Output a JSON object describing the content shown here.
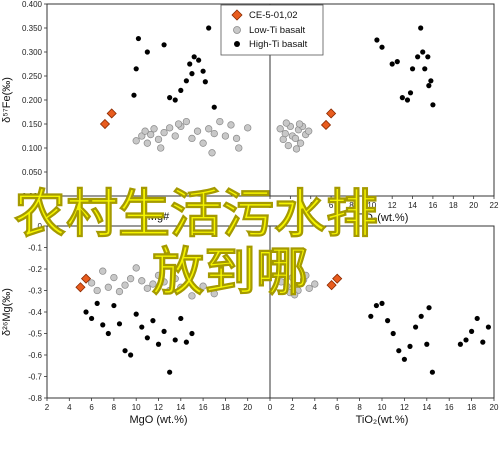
{
  "overlay_text": {
    "line1": "农村生活污水排",
    "line2": "放到哪"
  },
  "colors": {
    "ce": "#e85c1e",
    "ce_stroke": "#8b2a00",
    "low_ti": "#c8c8c8",
    "low_ti_stroke": "#8a8a8a",
    "high_ti": "#000000",
    "overlay": "#f5f500",
    "frame": "#333333"
  },
  "legend": {
    "ce": "CE-5-01,02",
    "low_ti": "Low-Ti basalt",
    "high_ti": "High-Ti basalt"
  },
  "chart_data": [
    {
      "type": "scatter",
      "panel": "top-left",
      "xlabel": "Mg#",
      "ylabel": "δ⁵⁷Fe(‰)",
      "xlim": [
        0,
        20
      ],
      "ylim": [
        0.0,
        0.4
      ],
      "xticks": [],
      "yticks": [
        "0.000",
        "0.050",
        "0.100",
        "0.150",
        "0.200",
        "0.250",
        "0.300",
        "0.350",
        "0.400"
      ],
      "series": [
        {
          "name": "CE-5-01,02",
          "marker": "diamond",
          "points": [
            [
              5.2,
              0.15
            ],
            [
              5.8,
              0.172
            ]
          ]
        },
        {
          "name": "Low-Ti basalt",
          "marker": "circle",
          "points": [
            [
              8,
              0.115
            ],
            [
              8.5,
              0.125
            ],
            [
              8.8,
              0.135
            ],
            [
              9,
              0.11
            ],
            [
              9.3,
              0.128
            ],
            [
              9.6,
              0.14
            ],
            [
              10,
              0.118
            ],
            [
              10.5,
              0.132
            ],
            [
              11,
              0.142
            ],
            [
              11.5,
              0.125
            ],
            [
              12,
              0.145
            ],
            [
              12.5,
              0.155
            ],
            [
              13,
              0.12
            ],
            [
              13.5,
              0.135
            ],
            [
              14,
              0.11
            ],
            [
              14.5,
              0.14
            ],
            [
              15,
              0.13
            ],
            [
              15.5,
              0.155
            ],
            [
              16,
              0.125
            ],
            [
              16.5,
              0.148
            ],
            [
              17,
              0.12
            ],
            [
              17.2,
              0.1
            ],
            [
              18,
              0.142
            ],
            [
              14.8,
              0.09
            ],
            [
              10.2,
              0.1
            ],
            [
              11.8,
              0.15
            ]
          ]
        },
        {
          "name": "High-Ti basalt",
          "marker": "circle",
          "points": [
            [
              7.8,
              0.21
            ],
            [
              8,
              0.265
            ],
            [
              8.2,
              0.328
            ],
            [
              9,
              0.3
            ],
            [
              10.5,
              0.315
            ],
            [
              11,
              0.205
            ],
            [
              11.5,
              0.2
            ],
            [
              12,
              0.22
            ],
            [
              12.5,
              0.24
            ],
            [
              12.8,
              0.275
            ],
            [
              13,
              0.255
            ],
            [
              13.2,
              0.29
            ],
            [
              13.6,
              0.283
            ],
            [
              14,
              0.26
            ],
            [
              14.2,
              0.238
            ],
            [
              14.5,
              0.35
            ],
            [
              15,
              0.185
            ]
          ]
        }
      ]
    },
    {
      "type": "scatter",
      "panel": "top-right",
      "xlabel": "TiO₂(wt.%)",
      "ylabel": "",
      "xlim": [
        0,
        22
      ],
      "ylim": [
        0.0,
        0.4
      ],
      "xticks": [
        "0",
        "2",
        "4",
        "6",
        "8",
        "10",
        "12",
        "14",
        "16",
        "18",
        "20",
        "22"
      ],
      "yticks": [],
      "series": [
        {
          "name": "CE-5-01,02",
          "points": [
            [
              5.5,
              0.148
            ],
            [
              6,
              0.172
            ]
          ]
        },
        {
          "name": "Low-Ti basalt",
          "points": [
            [
              1,
              0.14
            ],
            [
              1.3,
              0.118
            ],
            [
              1.5,
              0.13
            ],
            [
              1.8,
              0.105
            ],
            [
              2,
              0.145
            ],
            [
              2.2,
              0.125
            ],
            [
              2.5,
              0.12
            ],
            [
              2.8,
              0.138
            ],
            [
              3,
              0.11
            ],
            [
              3.2,
              0.145
            ],
            [
              3.5,
              0.128
            ],
            [
              2.6,
              0.098
            ],
            [
              3.8,
              0.135
            ],
            [
              1.6,
              0.152
            ],
            [
              2.9,
              0.15
            ]
          ]
        },
        {
          "name": "High-Ti basalt",
          "points": [
            [
              10.5,
              0.325
            ],
            [
              11,
              0.31
            ],
            [
              12,
              0.275
            ],
            [
              12.5,
              0.28
            ],
            [
              13,
              0.205
            ],
            [
              13.5,
              0.2
            ],
            [
              13.8,
              0.215
            ],
            [
              14,
              0.265
            ],
            [
              14.5,
              0.29
            ],
            [
              14.8,
              0.35
            ],
            [
              15,
              0.3
            ],
            [
              15.2,
              0.265
            ],
            [
              15.5,
              0.29
            ],
            [
              15.8,
              0.24
            ],
            [
              15.6,
              0.23
            ],
            [
              16,
              0.19
            ]
          ]
        }
      ]
    },
    {
      "type": "scatter",
      "panel": "bottom-left",
      "xlabel": "MgO (wt.%)",
      "ylabel": "δ²⁶Mg(‰)",
      "xlim": [
        2,
        22
      ],
      "ylim": [
        -0.8,
        0.0
      ],
      "xticks": [
        "2",
        "4",
        "6",
        "8",
        "10",
        "12",
        "14",
        "16",
        "18",
        "20"
      ],
      "yticks": [
        "0",
        "-0.1",
        "-0.2",
        "-0.3",
        "-0.4",
        "-0.5",
        "-0.6",
        "-0.7",
        "-0.8"
      ],
      "series": [
        {
          "name": "CE-5-01,02",
          "points": [
            [
              5,
              -0.285
            ],
            [
              5.5,
              -0.245
            ]
          ]
        },
        {
          "name": "Low-Ti basalt",
          "points": [
            [
              6,
              -0.265
            ],
            [
              6.5,
              -0.3
            ],
            [
              7,
              -0.21
            ],
            [
              7.5,
              -0.285
            ],
            [
              8,
              -0.24
            ],
            [
              8.5,
              -0.305
            ],
            [
              9,
              -0.275
            ],
            [
              9.5,
              -0.245
            ],
            [
              10,
              -0.195
            ],
            [
              10.5,
              -0.255
            ],
            [
              11,
              -0.29
            ],
            [
              11.5,
              -0.27
            ],
            [
              12,
              -0.23
            ],
            [
              12.5,
              -0.26
            ],
            [
              13,
              -0.3
            ],
            [
              13.5,
              -0.245
            ],
            [
              14,
              -0.285
            ],
            [
              15,
              -0.325
            ],
            [
              16,
              -0.28
            ],
            [
              17,
              -0.315
            ]
          ]
        },
        {
          "name": "High-Ti basalt",
          "points": [
            [
              5.5,
              -0.4
            ],
            [
              6,
              -0.43
            ],
            [
              6.5,
              -0.36
            ],
            [
              7,
              -0.46
            ],
            [
              7.5,
              -0.5
            ],
            [
              8,
              -0.37
            ],
            [
              8.5,
              -0.455
            ],
            [
              9,
              -0.58
            ],
            [
              9.5,
              -0.6
            ],
            [
              10,
              -0.41
            ],
            [
              10.5,
              -0.47
            ],
            [
              11,
              -0.52
            ],
            [
              11.5,
              -0.44
            ],
            [
              12,
              -0.55
            ],
            [
              12.5,
              -0.49
            ],
            [
              13,
              -0.68
            ],
            [
              13.5,
              -0.53
            ],
            [
              14,
              -0.43
            ],
            [
              14.5,
              -0.54
            ],
            [
              15,
              -0.5
            ]
          ]
        }
      ]
    },
    {
      "type": "scatter",
      "panel": "bottom-right",
      "xlabel": "TiO₂(wt.%)",
      "ylabel": "",
      "xlim": [
        0,
        20
      ],
      "ylim": [
        -0.8,
        0.0
      ],
      "xticks": [
        "0",
        "2",
        "4",
        "6",
        "8",
        "10",
        "12",
        "14",
        "16",
        "18",
        "20"
      ],
      "yticks": [],
      "series": [
        {
          "name": "CE-5-01,02",
          "points": [
            [
              5.5,
              -0.275
            ],
            [
              6,
              -0.245
            ]
          ]
        },
        {
          "name": "Low-Ti basalt",
          "points": [
            [
              1,
              -0.26
            ],
            [
              1.5,
              -0.28
            ],
            [
              2,
              -0.24
            ],
            [
              2.5,
              -0.3
            ],
            [
              3,
              -0.25
            ],
            [
              3.5,
              -0.29
            ],
            [
              2.2,
              -0.32
            ],
            [
              3.2,
              -0.23
            ],
            [
              4,
              -0.27
            ],
            [
              1.8,
              -0.31
            ]
          ]
        },
        {
          "name": "High-Ti basalt",
          "points": [
            [
              9,
              -0.42
            ],
            [
              9.5,
              -0.37
            ],
            [
              10,
              -0.36
            ],
            [
              10.5,
              -0.44
            ],
            [
              11,
              -0.5
            ],
            [
              11.5,
              -0.58
            ],
            [
              12,
              -0.62
            ],
            [
              12.5,
              -0.56
            ],
            [
              13,
              -0.47
            ],
            [
              13.5,
              -0.42
            ],
            [
              14,
              -0.55
            ],
            [
              14.2,
              -0.38
            ],
            [
              14.5,
              -0.68
            ],
            [
              17,
              -0.55
            ],
            [
              17.5,
              -0.53
            ],
            [
              18,
              -0.49
            ],
            [
              18.5,
              -0.43
            ],
            [
              19,
              -0.54
            ],
            [
              19.5,
              -0.47
            ]
          ]
        }
      ]
    }
  ]
}
